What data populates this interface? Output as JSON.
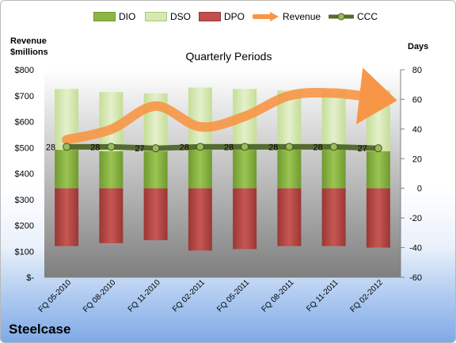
{
  "chart_data": {
    "type": "bar",
    "title": "Quarterly Periods",
    "company": "Steelcase",
    "y_left_label": [
      "Revenue",
      "$millions"
    ],
    "y_right_label": "Days",
    "y_left_ticks": [
      "$-",
      "$100",
      "$200",
      "$300",
      "$400",
      "$500",
      "$600",
      "$700",
      "$800"
    ],
    "y_right_ticks": [
      "-60",
      "-40",
      "-20",
      "0",
      "20",
      "40",
      "60",
      "80"
    ],
    "ylim_left": [
      0,
      800
    ],
    "ylim_right": [
      -60,
      80
    ],
    "categories": [
      "FQ 05-2010",
      "FQ 08-2010",
      "FQ 11-2010",
      "FQ 02-2011",
      "FQ 05-2011",
      "FQ 08-2011",
      "FQ 11-2011",
      "FQ 02-2012"
    ],
    "series": [
      {
        "name": "DIO",
        "axis": "right",
        "values": [
          26,
          25,
          25,
          26,
          26,
          26,
          26,
          25
        ],
        "color": "#8db545"
      },
      {
        "name": "DSO",
        "axis": "right",
        "values": [
          41,
          40,
          39,
          42,
          41,
          40,
          40,
          41
        ],
        "color": "#d7e8b4"
      },
      {
        "name": "DPO",
        "axis": "right",
        "values": [
          -39,
          -37,
          -35,
          -42,
          -41,
          -39,
          -39,
          -40
        ],
        "color": "#c0504d"
      },
      {
        "name": "Revenue",
        "axis": "left",
        "values": [
          530,
          570,
          660,
          580,
          620,
          700,
          710,
          690
        ],
        "color": "#f79646"
      },
      {
        "name": "CCC",
        "axis": "right",
        "values": [
          28,
          28,
          27,
          28,
          28,
          28,
          28,
          27
        ],
        "color": "#6b8e23"
      }
    ],
    "ccc_labels": [
      "28",
      "28",
      "27",
      "28",
      "28",
      "28",
      "28",
      "27"
    ],
    "legend_position": "top",
    "grid": false
  }
}
